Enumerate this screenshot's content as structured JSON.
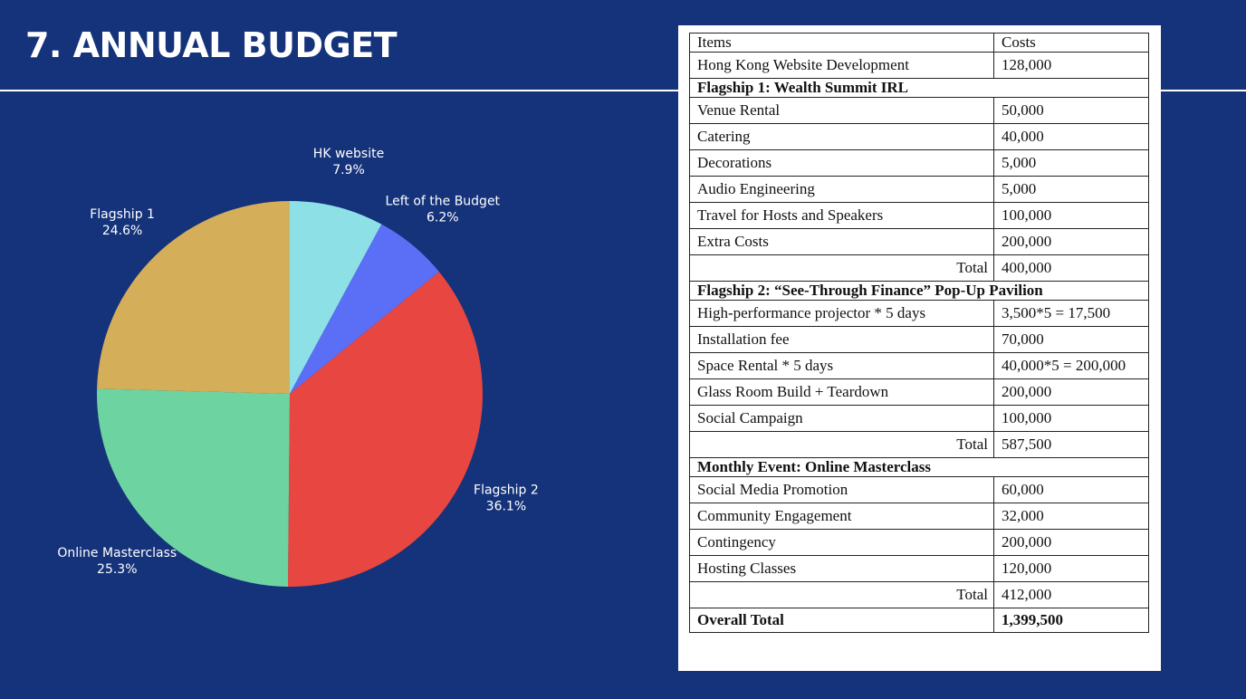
{
  "title": "7. ANNUAL BUDGET",
  "chart_data": {
    "type": "pie",
    "title": "",
    "slices": [
      {
        "label": "HK website",
        "percent_label": "7.9%",
        "value": 7.9,
        "color": "#8de0e6"
      },
      {
        "label": "Left of the Budget",
        "percent_label": "6.2%",
        "value": 6.2,
        "color": "#5a6ff5"
      },
      {
        "label": "Flagship 2",
        "percent_label": "36.1%",
        "value": 36.1,
        "color": "#e84640"
      },
      {
        "label": "Online Masterclass",
        "percent_label": "25.3%",
        "value": 25.3,
        "color": "#6dd3a0"
      },
      {
        "label": "Flagship 1",
        "percent_label": "24.6%",
        "value": 24.6,
        "color": "#d4ae58"
      }
    ]
  },
  "table": {
    "header": {
      "items": "Items",
      "costs": "Costs"
    },
    "hk_row": {
      "item": "Hong Kong Website Development",
      "cost": "128,000"
    },
    "flagship1": {
      "heading": "Flagship 1: Wealth Summit IRL",
      "rows": [
        {
          "item": "Venue Rental",
          "cost": "50,000"
        },
        {
          "item": "Catering",
          "cost": "40,000"
        },
        {
          "item": "Decorations",
          "cost": "5,000"
        },
        {
          "item": "Audio Engineering",
          "cost": "5,000"
        },
        {
          "item": "Travel for Hosts and Speakers",
          "cost": "100,000"
        },
        {
          "item": "Extra Costs",
          "cost": "200,000"
        }
      ],
      "total_label": "Total",
      "total": "400,000"
    },
    "flagship2": {
      "heading": "Flagship 2: “See-Through Finance” Pop-Up Pavilion",
      "rows": [
        {
          "item": "High-performance projector * 5 days",
          "cost": "3,500*5 = 17,500"
        },
        {
          "item": "Installation fee",
          "cost": "70,000"
        },
        {
          "item": "Space Rental * 5 days",
          "cost": "40,000*5 = 200,000"
        },
        {
          "item": "Glass Room Build + Teardown",
          "cost": "200,000"
        },
        {
          "item": "Social Campaign",
          "cost": "100,000"
        }
      ],
      "total_label": "Total",
      "total": "587,500"
    },
    "monthly": {
      "heading": "Monthly Event: Online Masterclass",
      "rows": [
        {
          "item": "Social Media Promotion",
          "cost": "60,000"
        },
        {
          "item": "Community Engagement",
          "cost": "32,000"
        },
        {
          "item": "Contingency",
          "cost": "200,000"
        },
        {
          "item": "Hosting Classes",
          "cost": "120,000"
        }
      ],
      "total_label": "Total",
      "total": "412,000"
    },
    "overall": {
      "label": "Overall Total",
      "total": "1,399,500"
    }
  }
}
